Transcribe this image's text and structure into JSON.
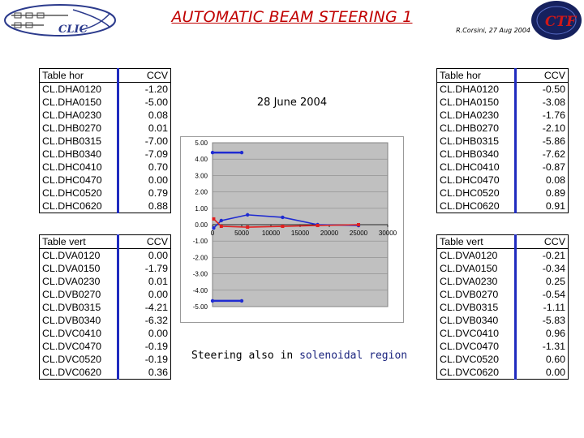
{
  "header": {
    "title": "AUTOMATIC BEAM STEERING 1",
    "author_date": "R.Corsini, 27 Aug 2004",
    "clic_logo_text": "CLIC",
    "ctf_logo_text": "CTF"
  },
  "slide": {
    "date": "28 June 2004",
    "caption_prefix": "Steering also in ",
    "caption_highlight": "solenoidal region"
  },
  "tables": {
    "left_hor": {
      "header": [
        "Table hor",
        "CCV"
      ],
      "rows": [
        [
          "CL.DHA0120",
          "-1.20"
        ],
        [
          "CL.DHA0150",
          "-5.00"
        ],
        [
          "CL.DHA0230",
          "0.08"
        ],
        [
          "CL.DHB0270",
          "0.01"
        ],
        [
          "CL.DHB0315",
          "-7.00"
        ],
        [
          "CL.DHB0340",
          "-7.09"
        ],
        [
          "CL.DHC0410",
          "0.70"
        ],
        [
          "CL.DHC0470",
          "0.00"
        ],
        [
          "CL.DHC0520",
          "0.79"
        ],
        [
          "CL.DHC0620",
          "0.88"
        ]
      ]
    },
    "left_vert": {
      "header": [
        "Table vert",
        "CCV"
      ],
      "rows": [
        [
          "CL.DVA0120",
          "0.00"
        ],
        [
          "CL.DVA0150",
          "-1.79"
        ],
        [
          "CL.DVA0230",
          "0.01"
        ],
        [
          "CL.DVB0270",
          "0.00"
        ],
        [
          "CL.DVB0315",
          "-4.21"
        ],
        [
          "CL.DVB0340",
          "-6.32"
        ],
        [
          "CL.DVC0410",
          "0.00"
        ],
        [
          "CL.DVC0470",
          "-0.19"
        ],
        [
          "CL.DVC0520",
          "-0.19"
        ],
        [
          "CL.DVC0620",
          "0.36"
        ]
      ]
    },
    "right_hor": {
      "header": [
        "Table hor",
        "CCV"
      ],
      "rows": [
        [
          "CL.DHA0120",
          "-0.50"
        ],
        [
          "CL.DHA0150",
          "-3.08"
        ],
        [
          "CL.DHA0230",
          "-1.76"
        ],
        [
          "CL.DHB0270",
          "-2.10"
        ],
        [
          "CL.DHB0315",
          "-5.86"
        ],
        [
          "CL.DHB0340",
          "-7.62"
        ],
        [
          "CL.DHC0410",
          "-0.87"
        ],
        [
          "CL.DHC0470",
          "0.08"
        ],
        [
          "CL.DHC0520",
          "0.89"
        ],
        [
          "CL.DHC0620",
          "0.91"
        ]
      ]
    },
    "right_vert": {
      "header": [
        "Table vert",
        "CCV"
      ],
      "rows": [
        [
          "CL.DVA0120",
          "-0.21"
        ],
        [
          "CL.DVA0150",
          "-0.34"
        ],
        [
          "CL.DVA0230",
          "0.25"
        ],
        [
          "CL.DVB0270",
          "-0.54"
        ],
        [
          "CL.DVB0315",
          "-1.11"
        ],
        [
          "CL.DVB0340",
          "-5.83"
        ],
        [
          "CL.DVC0410",
          "0.96"
        ],
        [
          "CL.DVC0470",
          "-1.31"
        ],
        [
          "CL.DVC0520",
          "0.60"
        ],
        [
          "CL.DVC0620",
          "0.00"
        ]
      ]
    }
  },
  "chart_data": {
    "type": "line",
    "title": "",
    "xlabel": "",
    "ylabel": "",
    "xlim": [
      0,
      30000
    ],
    "ylim": [
      -5,
      5
    ],
    "x_ticks": [
      "0",
      "5000",
      "10000",
      "15000",
      "20000",
      "25000",
      "30000"
    ],
    "y_ticks": [
      "5.00",
      "4.00",
      "3.00",
      "2.00",
      "1.00",
      "0.00",
      "-1.00",
      "-2.00",
      "-3.00",
      "-4.00",
      "-5.00"
    ],
    "grid": true,
    "legend": "none",
    "background": "#c0c0c0",
    "series": [
      {
        "color": "#1f2bd1",
        "points": [
          [
            200,
            -0.2
          ],
          [
            1500,
            0.25
          ],
          [
            6000,
            0.6
          ],
          [
            12000,
            0.45
          ],
          [
            18000,
            0.0
          ],
          [
            25000,
            -0.05
          ]
        ]
      },
      {
        "color": "#e02020",
        "points": [
          [
            200,
            0.35
          ],
          [
            1500,
            -0.1
          ],
          [
            6000,
            -0.15
          ],
          [
            12000,
            -0.1
          ],
          [
            18000,
            -0.05
          ],
          [
            25000,
            0.0
          ]
        ]
      },
      {
        "color": "#1f2bd1",
        "points": [
          [
            0,
            4.4
          ],
          [
            5000,
            4.4
          ]
        ]
      },
      {
        "color": "#1f2bd1",
        "points": [
          [
            0,
            -4.65
          ],
          [
            5000,
            -4.65
          ]
        ]
      }
    ]
  }
}
